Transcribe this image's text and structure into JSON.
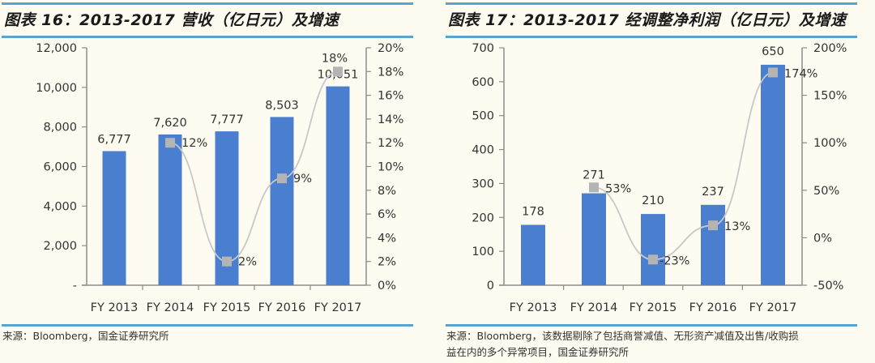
{
  "charts": [
    {
      "title": "图表 16：2013-2017 营收（亿日元）及增速",
      "source": "来源：Bloomberg，国金证券研究所",
      "source_line2": ""
    },
    {
      "title": "图表 17：2013-2017 经调整净利润（亿日元）及增速",
      "source": "来源：Bloomberg，该数据剔除了包括商誉减值、无形资产减值及出售/收购损",
      "source_line2": "益在内的多个异常项目，国金证券研究所"
    }
  ],
  "colors": {
    "bar": "#4a7fd0",
    "line": "#c8c8c8",
    "marker": "#b4b4b4",
    "rule": "#5aa3cc",
    "background": "#fefbf0",
    "axis": "#8c8c8c"
  },
  "chart_data": [
    {
      "type": "bar",
      "title": "图表 16：2013-2017 营收（亿日元）及增速",
      "categories": [
        "FY 2013",
        "FY 2014",
        "FY 2015",
        "FY 2016",
        "FY 2017"
      ],
      "series": [
        {
          "name": "营收（亿日元）",
          "type": "bar",
          "axis": "left",
          "values": [
            6777,
            7620,
            7777,
            8503,
            10051
          ],
          "labels": [
            "6,777",
            "7,620",
            "7,777",
            "8,503",
            "10,051"
          ]
        },
        {
          "name": "增速",
          "type": "line",
          "axis": "right",
          "values": [
            null,
            12,
            2,
            9,
            18
          ],
          "labels": [
            "",
            "12%",
            "2%",
            "9%",
            "18%"
          ]
        }
      ],
      "left_axis": {
        "ticks": [
          "-",
          "2,000",
          "4,000",
          "6,000",
          "8,000",
          "10,000",
          "12,000"
        ],
        "range": [
          0,
          12000
        ]
      },
      "right_axis": {
        "ticks": [
          "0%",
          "2%",
          "4%",
          "6%",
          "8%",
          "10%",
          "12%",
          "14%",
          "16%",
          "18%",
          "20%"
        ],
        "range": [
          0,
          20
        ]
      },
      "grid": false,
      "legend": "none"
    },
    {
      "type": "bar",
      "title": "图表 17：2013-2017 经调整净利润（亿日元）及增速",
      "categories": [
        "FY 2013",
        "FY 2014",
        "FY 2015",
        "FY 2016",
        "FY 2017"
      ],
      "series": [
        {
          "name": "经调整净利润（亿日元）",
          "type": "bar",
          "axis": "left",
          "values": [
            178,
            271,
            210,
            237,
            650
          ],
          "labels": [
            "178",
            "271",
            "210",
            "237",
            "650"
          ]
        },
        {
          "name": "增速",
          "type": "line",
          "axis": "right",
          "values": [
            null,
            53,
            -23,
            13,
            174
          ],
          "labels": [
            "",
            "53%",
            "-23%",
            "13%",
            "174%"
          ]
        }
      ],
      "left_axis": {
        "ticks": [
          "0",
          "100",
          "200",
          "300",
          "400",
          "500",
          "600",
          "700"
        ],
        "range": [
          0,
          700
        ]
      },
      "right_axis": {
        "ticks": [
          "-50%",
          "0%",
          "50%",
          "100%",
          "150%",
          "200%"
        ],
        "range": [
          -50,
          200
        ]
      },
      "grid": false,
      "legend": "none"
    }
  ]
}
